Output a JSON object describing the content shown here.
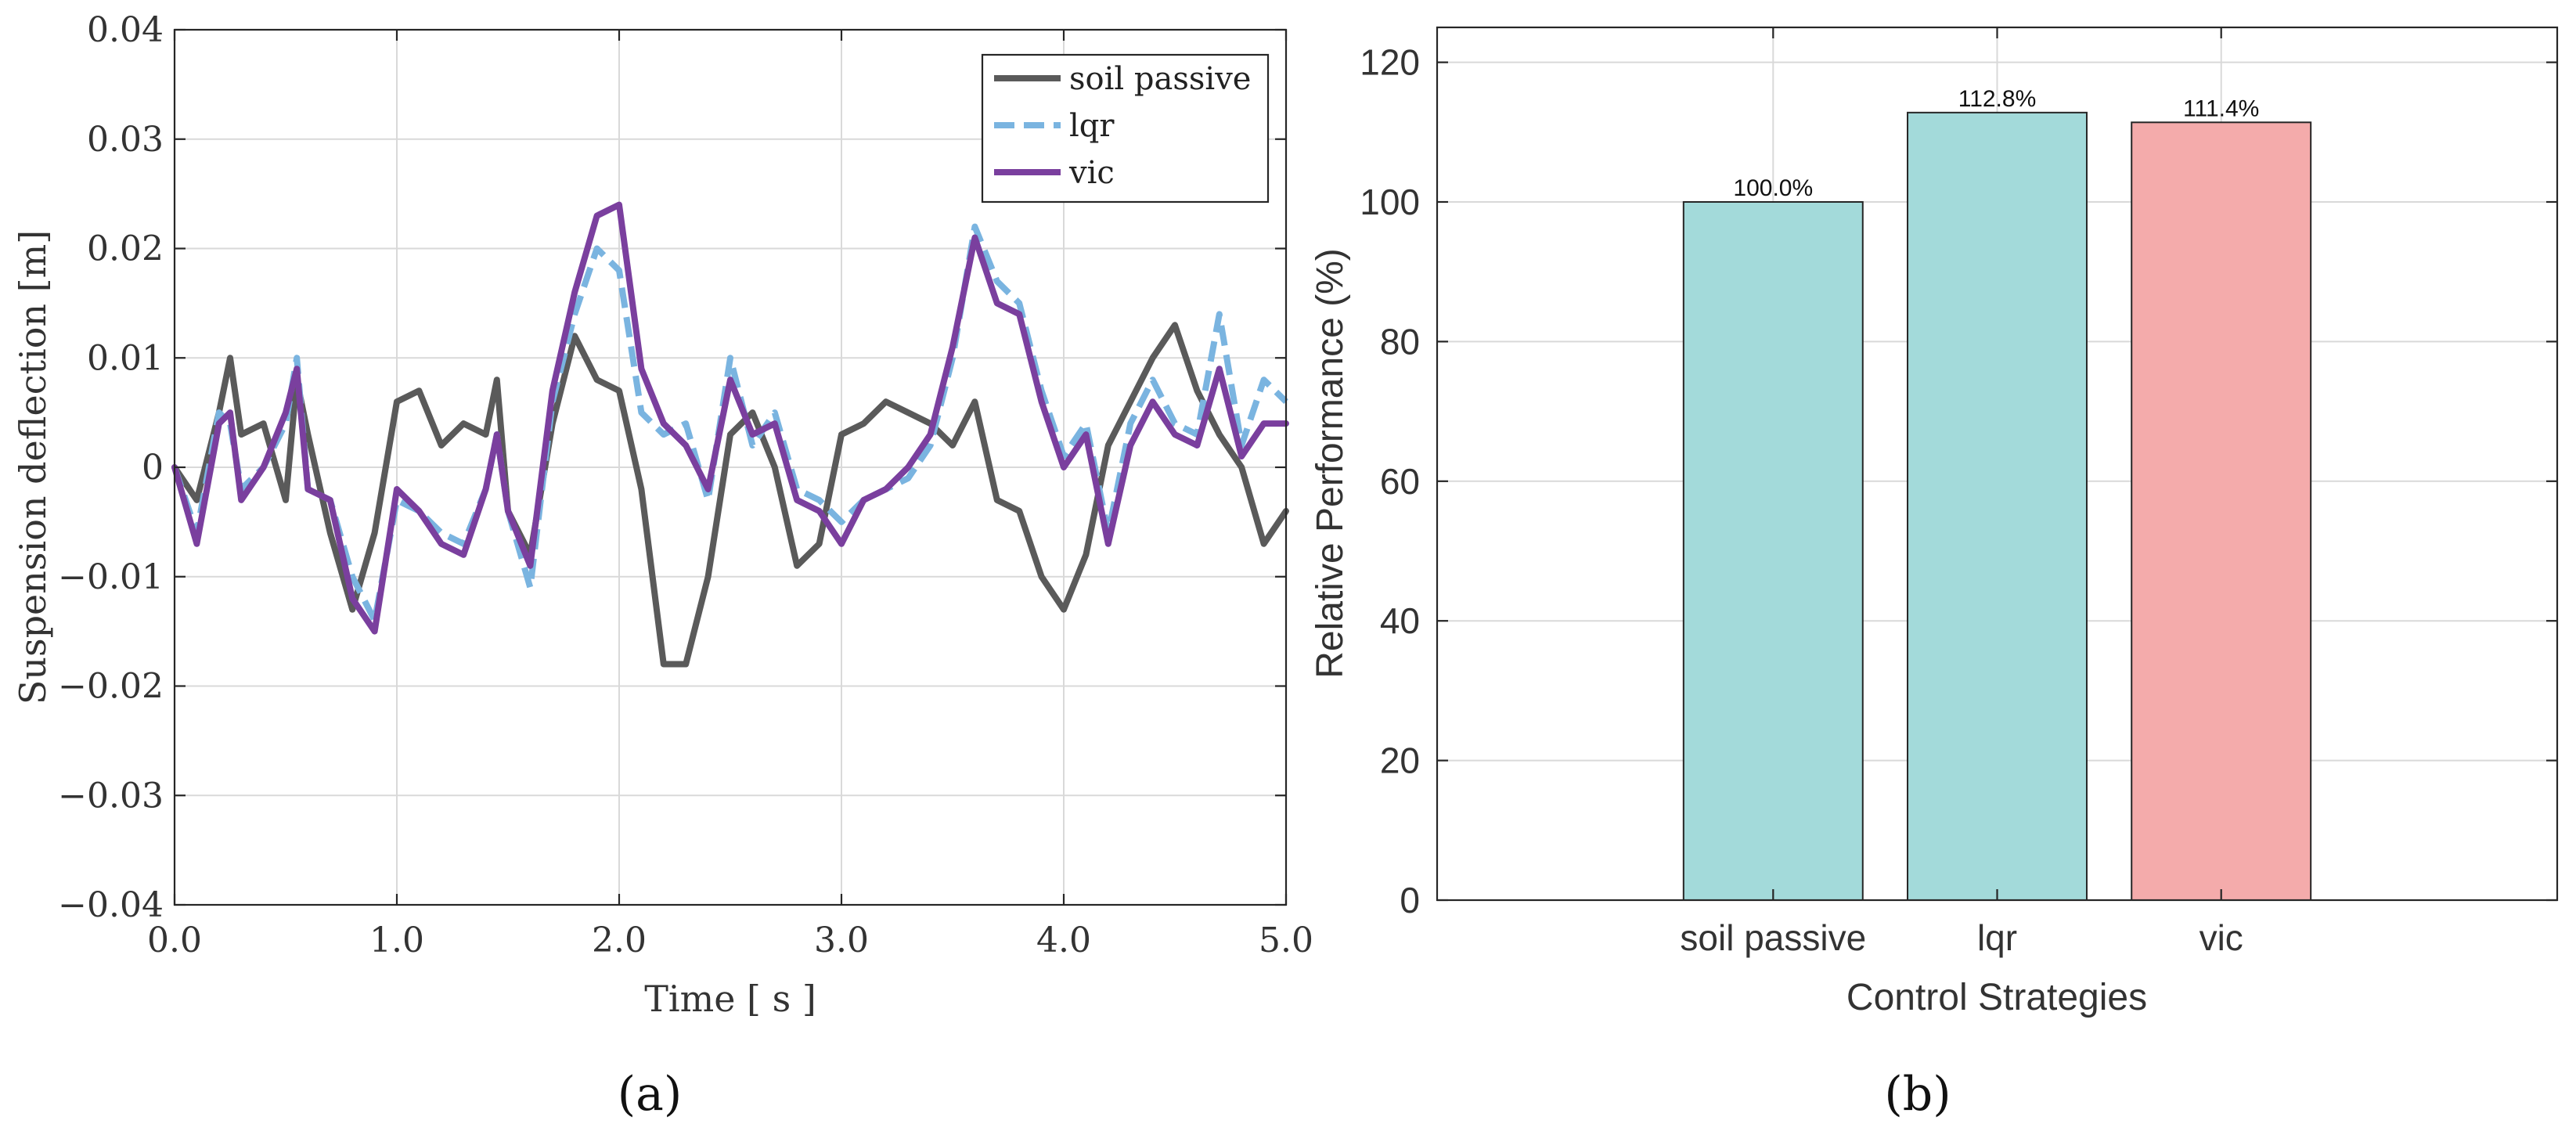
{
  "chart_data": [
    {
      "type": "line",
      "panel_label": "(a)",
      "xlabel": "Time [ s ]",
      "ylabel": "Suspension deflection [m]",
      "xlim": [
        0,
        5
      ],
      "ylim": [
        -0.04,
        0.04
      ],
      "x_ticks": [
        0.0,
        1.0,
        2.0,
        3.0,
        4.0,
        5.0
      ],
      "x_tick_labels": [
        "0.0",
        "1.0",
        "2.0",
        "3.0",
        "4.0",
        "5.0"
      ],
      "y_ticks": [
        -0.04,
        -0.03,
        -0.02,
        -0.01,
        0,
        0.01,
        0.02,
        0.03,
        0.04
      ],
      "y_tick_labels": [
        "−0.04",
        "−0.03",
        "−0.02",
        "−0.01",
        "0",
        "0.01",
        "0.02",
        "0.03",
        "0.04"
      ],
      "grid": true,
      "legend_position": "top-right",
      "x": [
        0.0,
        0.1,
        0.2,
        0.25,
        0.3,
        0.4,
        0.5,
        0.55,
        0.6,
        0.7,
        0.8,
        0.9,
        1.0,
        1.1,
        1.2,
        1.3,
        1.4,
        1.45,
        1.5,
        1.6,
        1.7,
        1.8,
        1.9,
        2.0,
        2.1,
        2.2,
        2.3,
        2.4,
        2.5,
        2.6,
        2.7,
        2.8,
        2.9,
        3.0,
        3.1,
        3.2,
        3.3,
        3.4,
        3.5,
        3.6,
        3.7,
        3.8,
        3.9,
        4.0,
        4.1,
        4.2,
        4.3,
        4.4,
        4.5,
        4.6,
        4.7,
        4.8,
        4.9,
        5.0
      ],
      "series": [
        {
          "name": "soil passive",
          "color": "#5a5a5a",
          "style": "solid",
          "values": [
            0.0,
            -0.003,
            0.005,
            0.01,
            0.003,
            0.004,
            -0.003,
            0.008,
            0.003,
            -0.006,
            -0.013,
            -0.006,
            0.006,
            0.007,
            0.002,
            0.004,
            0.003,
            0.008,
            -0.004,
            -0.008,
            0.004,
            0.012,
            0.008,
            0.007,
            -0.002,
            -0.018,
            -0.018,
            -0.01,
            0.003,
            0.005,
            0.0,
            -0.009,
            -0.007,
            0.003,
            0.004,
            0.006,
            0.005,
            0.004,
            0.002,
            0.006,
            -0.003,
            -0.004,
            -0.01,
            -0.013,
            -0.008,
            0.002,
            0.006,
            0.01,
            0.013,
            0.007,
            0.003,
            0.0,
            -0.007,
            -0.004
          ]
        },
        {
          "name": "lqr",
          "color": "#7ab4e0",
          "style": "dashed",
          "values": [
            0.0,
            -0.006,
            0.005,
            0.004,
            -0.002,
            0.0,
            0.004,
            0.01,
            -0.002,
            -0.003,
            -0.01,
            -0.014,
            -0.003,
            -0.004,
            -0.006,
            -0.007,
            -0.002,
            0.003,
            -0.004,
            -0.011,
            0.006,
            0.014,
            0.02,
            0.018,
            0.005,
            0.003,
            0.004,
            -0.003,
            0.01,
            0.002,
            0.005,
            -0.002,
            -0.003,
            -0.005,
            -0.003,
            -0.002,
            -0.001,
            0.002,
            0.01,
            0.022,
            0.017,
            0.015,
            0.007,
            0.001,
            0.004,
            -0.006,
            0.004,
            0.008,
            0.004,
            0.003,
            0.014,
            0.002,
            0.008,
            0.006
          ]
        },
        {
          "name": "vic",
          "color": "#7a3f9e",
          "style": "solid",
          "values": [
            0.0,
            -0.007,
            0.004,
            0.005,
            -0.003,
            0.0,
            0.005,
            0.009,
            -0.002,
            -0.003,
            -0.012,
            -0.015,
            -0.002,
            -0.004,
            -0.007,
            -0.008,
            -0.002,
            0.003,
            -0.004,
            -0.009,
            0.007,
            0.016,
            0.023,
            0.024,
            0.009,
            0.004,
            0.002,
            -0.002,
            0.008,
            0.003,
            0.004,
            -0.003,
            -0.004,
            -0.007,
            -0.003,
            -0.002,
            0.0,
            0.003,
            0.011,
            0.021,
            0.015,
            0.014,
            0.006,
            0.0,
            0.003,
            -0.007,
            0.002,
            0.006,
            0.003,
            0.002,
            0.009,
            0.001,
            0.004,
            0.004
          ]
        }
      ]
    },
    {
      "type": "bar",
      "panel_label": "(b)",
      "xlabel": "Control Strategies",
      "ylabel": "Relative Performance (%)",
      "ylim": [
        0,
        125
      ],
      "y_ticks": [
        0,
        20,
        40,
        60,
        80,
        100,
        120
      ],
      "y_tick_labels": [
        "0",
        "20",
        "40",
        "60",
        "80",
        "100",
        "120"
      ],
      "grid": true,
      "categories": [
        "soil passive",
        "lqr",
        "vic"
      ],
      "values": [
        100.0,
        112.8,
        111.4
      ],
      "data_labels": [
        "100.0%",
        "112.8%",
        "111.4%"
      ],
      "colors": [
        "#a3dada",
        "#a3dada",
        "#f4abab"
      ]
    }
  ]
}
